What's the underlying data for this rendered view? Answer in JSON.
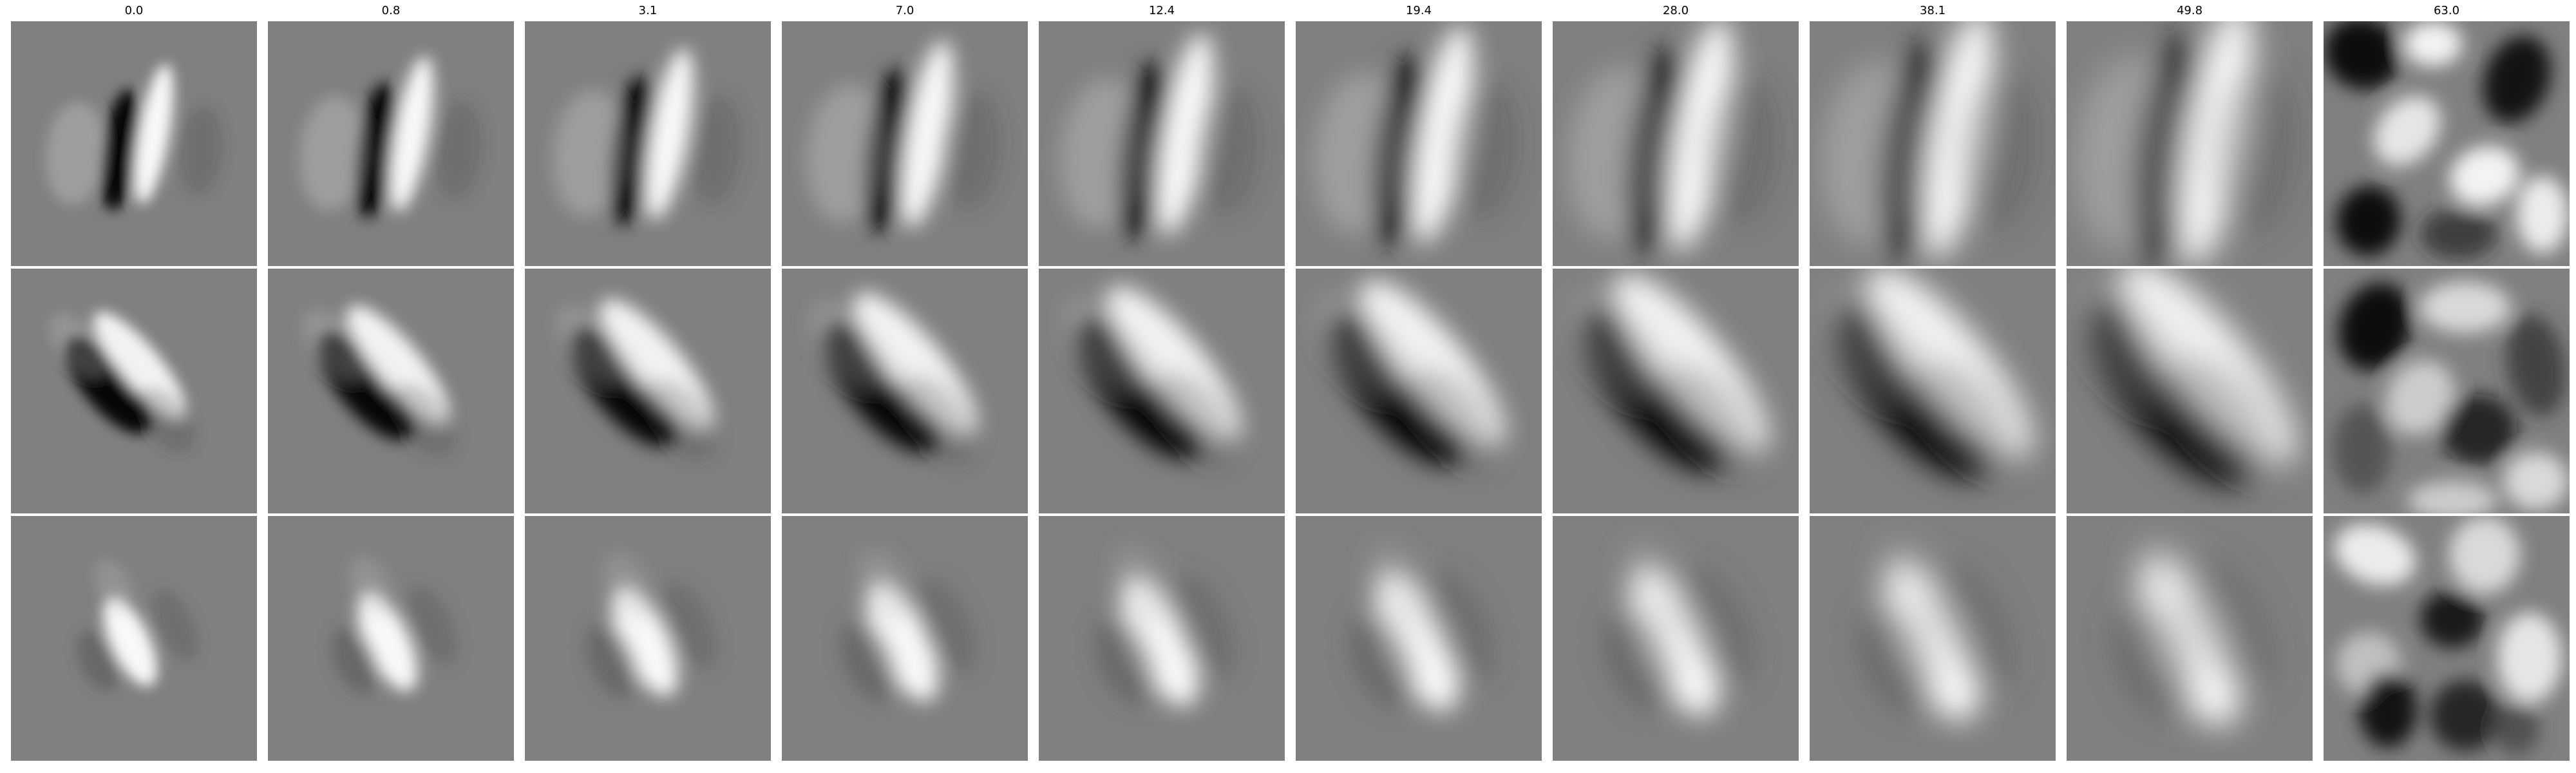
{
  "column_titles": [
    "0.0",
    "0.8",
    "3.1",
    "7.0",
    "12.4",
    "19.4",
    "28.0",
    "38.1",
    "49.8",
    "63.0"
  ],
  "rows": [
    {
      "pattern": "vertical dark-light bar pair (black left, white right)"
    },
    {
      "pattern": "diagonal dark-light bar pair oriented top-left to bottom-right"
    },
    {
      "pattern": "diagonal bright blob with flanking darker lobes"
    }
  ],
  "colors": {
    "background": "#808080",
    "max": "#ffffff",
    "min": "#000000"
  }
}
